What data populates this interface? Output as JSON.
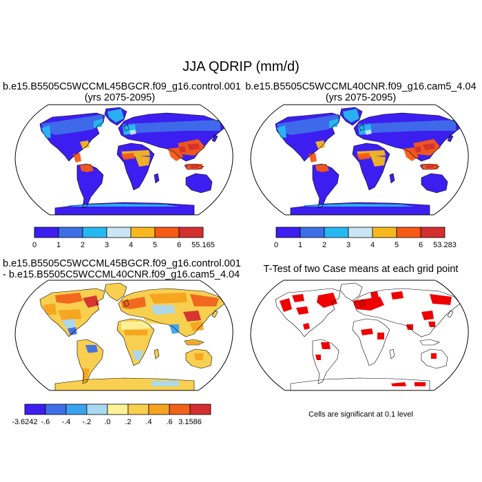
{
  "figure": {
    "title": "JJA QDRIP (mm/d)"
  },
  "panels": [
    {
      "id": "case1",
      "title_line1": "b.e15.B5505C5WCCML45BGCR.f09_g16.control.001",
      "title_line2": "(yrs 2075-2095)",
      "colorbar": {
        "colors": [
          "#3d1ef0",
          "#3e6fe8",
          "#27b8f2",
          "#c9e6f2",
          "#f6b81e",
          "#f75a14",
          "#d42f2f"
        ],
        "tick_labels": [
          "0",
          "1",
          "2",
          "3",
          "4",
          "5",
          "6",
          "55.165"
        ]
      }
    },
    {
      "id": "case2",
      "title_line1": "b.e15.B5505C5WCCML40CNR.f09_g16.cam5_4.04",
      "title_line2": "(yrs 2075-2095)",
      "colorbar": {
        "colors": [
          "#3d1ef0",
          "#3e6fe8",
          "#27b8f2",
          "#c9e6f2",
          "#f6b81e",
          "#f75a14",
          "#d42f2f"
        ],
        "tick_labels": [
          "0",
          "1",
          "2",
          "3",
          "4",
          "5",
          "6",
          "53.283"
        ]
      }
    },
    {
      "id": "difference",
      "title_line1": "b.e15.B5505C5WCCML45BGCR.f09_g16.control.001",
      "title_line2": "- b.e15.B5505C5WCCML40CNR.f09_g16.cam5_4.04",
      "colorbar": {
        "colors": [
          "#3d1ef0",
          "#3e6fe8",
          "#3ba2f0",
          "#a8d8f2",
          "#fef19a",
          "#f8cf4f",
          "#f7a31f",
          "#f0621b",
          "#d42f2f"
        ],
        "tick_labels": [
          "-3.6242",
          "-.6",
          "-.4",
          "-.2",
          ".0",
          ".2",
          ".4",
          ".6",
          "3.1586"
        ]
      }
    },
    {
      "id": "ttest",
      "title_line1": "T-Test of two Case means at each grid point",
      "footnote": "Cells are significant at 0.1 level",
      "significant_color": "#ee0000"
    }
  ]
}
